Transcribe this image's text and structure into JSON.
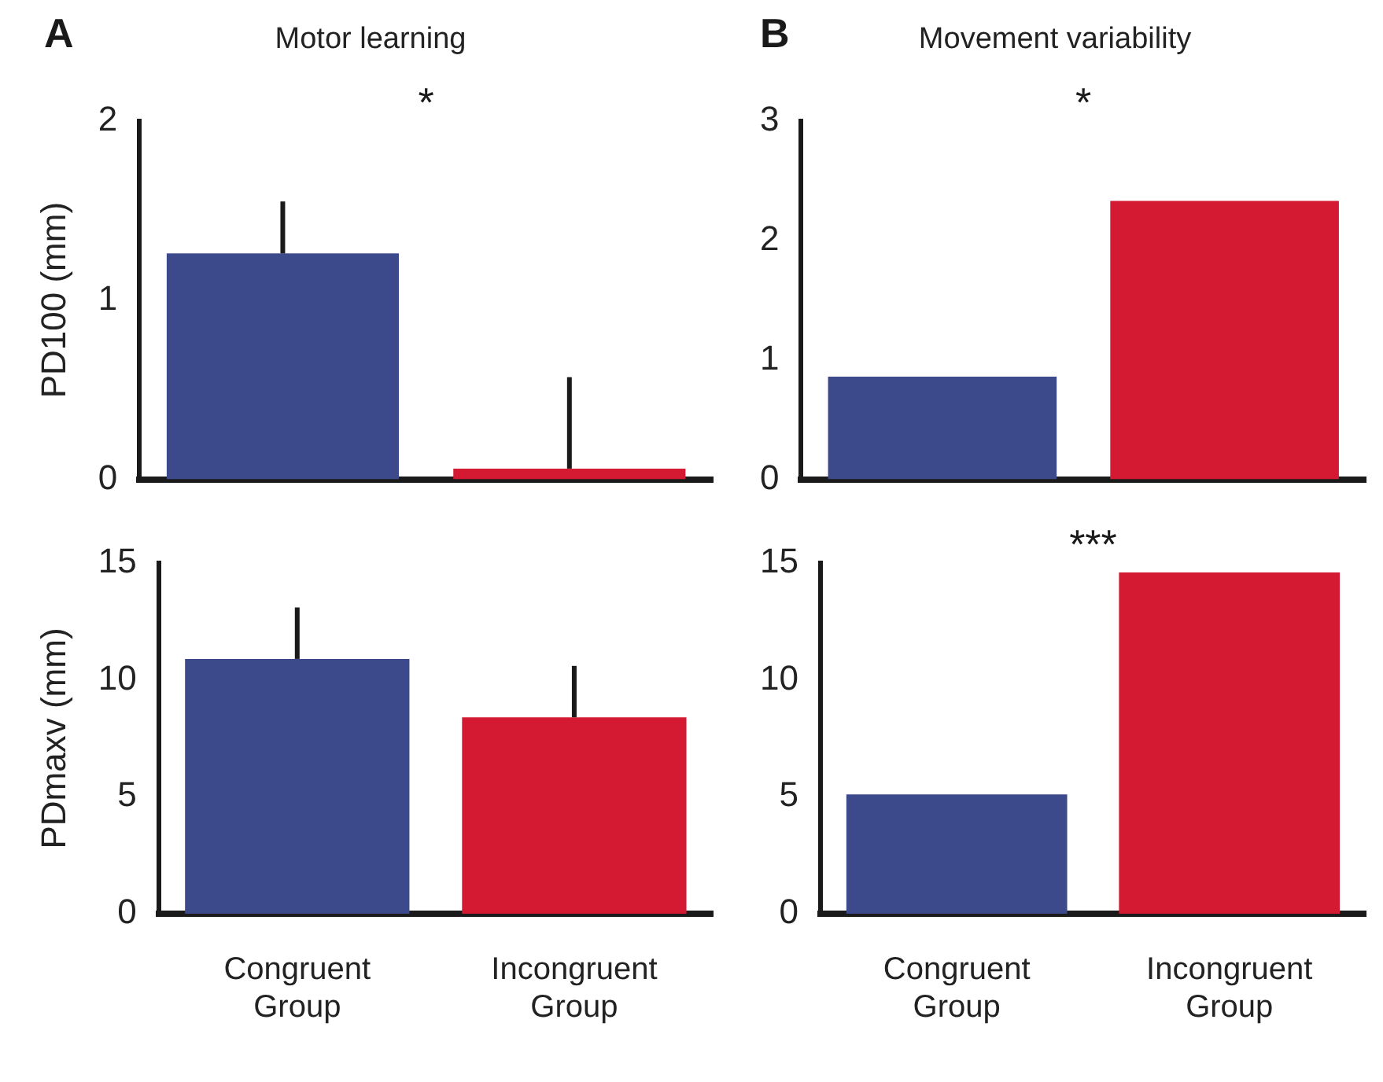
{
  "chart_data": [
    {
      "type": "bar",
      "title": "Motor learning",
      "ylabel": "PD100 (mm)",
      "categories": [
        null,
        null
      ],
      "values": [
        1.26,
        0.06
      ],
      "colors": [
        "#3c4a8c",
        "#d31a32"
      ],
      "errors": [
        [
          1.26,
          1.55
        ],
        [
          0.06,
          0.57
        ]
      ],
      "ylim": [
        0,
        2
      ],
      "yticks": [
        0,
        1,
        2
      ],
      "tick_labels": "y",
      "annotations": [
        "A",
        "*"
      ]
    },
    {
      "type": "bar",
      "title": "Movement variability",
      "categories": [
        null,
        null
      ],
      "values": [
        0.86,
        2.33
      ],
      "colors": [
        "#3c4a8c",
        "#d31a32"
      ],
      "ylim": [
        0,
        3
      ],
      "yticks": [
        0,
        1,
        2,
        3
      ],
      "tick_labels": "y",
      "annotations": [
        "B",
        "*"
      ]
    },
    {
      "type": "bar",
      "ylabel": "PDmaxv (mm)",
      "categories": [
        "Congruent Group",
        "Incongruent Group"
      ],
      "values": [
        10.9,
        8.4
      ],
      "colors": [
        "#3c4a8c",
        "#d31a32"
      ],
      "errors": [
        [
          10.9,
          13.1
        ],
        [
          8.4,
          10.6
        ]
      ],
      "ylim": [
        0,
        15
      ],
      "yticks": [
        0,
        5,
        10,
        15
      ]
    },
    {
      "type": "bar",
      "categories": [
        "Congruent Group",
        "Incongruent Group"
      ],
      "values": [
        5.1,
        14.6
      ],
      "colors": [
        "#3c4a8c",
        "#d31a32"
      ],
      "ylim": [
        0,
        15
      ],
      "yticks": [
        0,
        5,
        10,
        15
      ],
      "annotations": [
        null,
        "***"
      ]
    }
  ]
}
